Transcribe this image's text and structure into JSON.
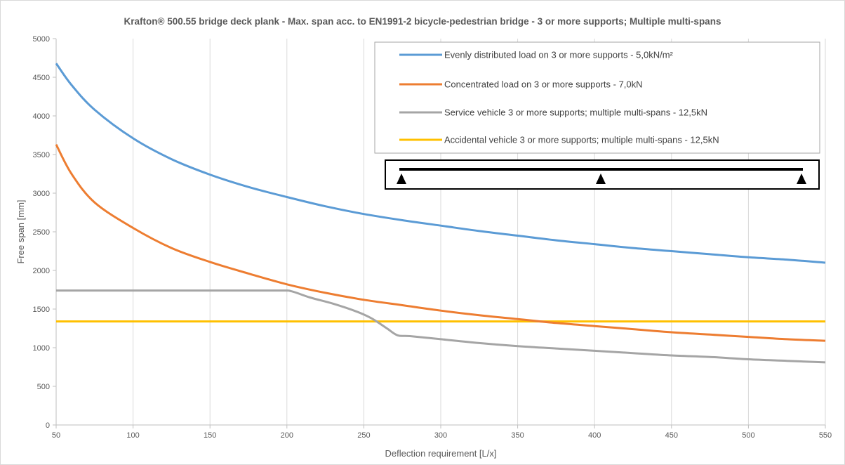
{
  "chart_data": {
    "type": "line",
    "title": "Krafton® 500.55 bridge deck plank  - Max. span acc. to EN1991-2 bicycle-pedestrian bridge - 3 or more supports; Multiple multi-spans",
    "xlabel": "Deflection requirement [L/x]",
    "ylabel": "Free span [mm]",
    "xlim": [
      50,
      550
    ],
    "ylim": [
      0,
      5000
    ],
    "xticks": [
      50,
      100,
      150,
      200,
      250,
      300,
      350,
      400,
      450,
      500,
      550
    ],
    "yticks": [
      0,
      500,
      1000,
      1500,
      2000,
      2500,
      3000,
      3500,
      4000,
      4500,
      5000
    ],
    "grid": "vertical",
    "legend_position": "top-right",
    "series": [
      {
        "name": "Evenly distributed load on 3 or more supports - 5,0kN/m²",
        "color": "#5b9bd5",
        "x": [
          50,
          60,
          75,
          100,
          125,
          150,
          175,
          200,
          225,
          250,
          275,
          300,
          325,
          350,
          375,
          400,
          425,
          450,
          475,
          500,
          525,
          550
        ],
        "y": [
          4680,
          4400,
          4080,
          3710,
          3440,
          3240,
          3080,
          2950,
          2830,
          2730,
          2650,
          2580,
          2510,
          2450,
          2390,
          2340,
          2290,
          2250,
          2210,
          2170,
          2140,
          2100
        ]
      },
      {
        "name": "Concentrated load on 3 or more supports - 7,0kN",
        "color": "#ed7d31",
        "x": [
          50,
          60,
          75,
          100,
          125,
          150,
          175,
          200,
          225,
          250,
          275,
          300,
          325,
          350,
          375,
          400,
          425,
          450,
          475,
          500,
          525,
          550
        ],
        "y": [
          3630,
          3250,
          2880,
          2550,
          2290,
          2110,
          1960,
          1820,
          1710,
          1620,
          1550,
          1480,
          1420,
          1370,
          1320,
          1280,
          1240,
          1200,
          1170,
          1140,
          1110,
          1090
        ]
      },
      {
        "name": "Service vehicle 3 or more supports; multiple multi-spans - 12,5kN",
        "color": "#a5a5a5",
        "x": [
          50,
          100,
          150,
          195,
          203,
          215,
          230,
          245,
          255,
          265,
          272,
          280,
          300,
          325,
          350,
          375,
          400,
          425,
          450,
          475,
          500,
          525,
          550
        ],
        "y": [
          1740,
          1740,
          1740,
          1740,
          1730,
          1650,
          1570,
          1470,
          1380,
          1250,
          1160,
          1150,
          1110,
          1060,
          1020,
          990,
          960,
          930,
          900,
          880,
          850,
          830,
          810
        ]
      },
      {
        "name": "Accidental vehicle 3 or more supports; multiple multi-spans - 12,5kN",
        "color": "#ffc000",
        "x": [
          50,
          550
        ],
        "y": [
          1340,
          1340
        ]
      }
    ]
  }
}
